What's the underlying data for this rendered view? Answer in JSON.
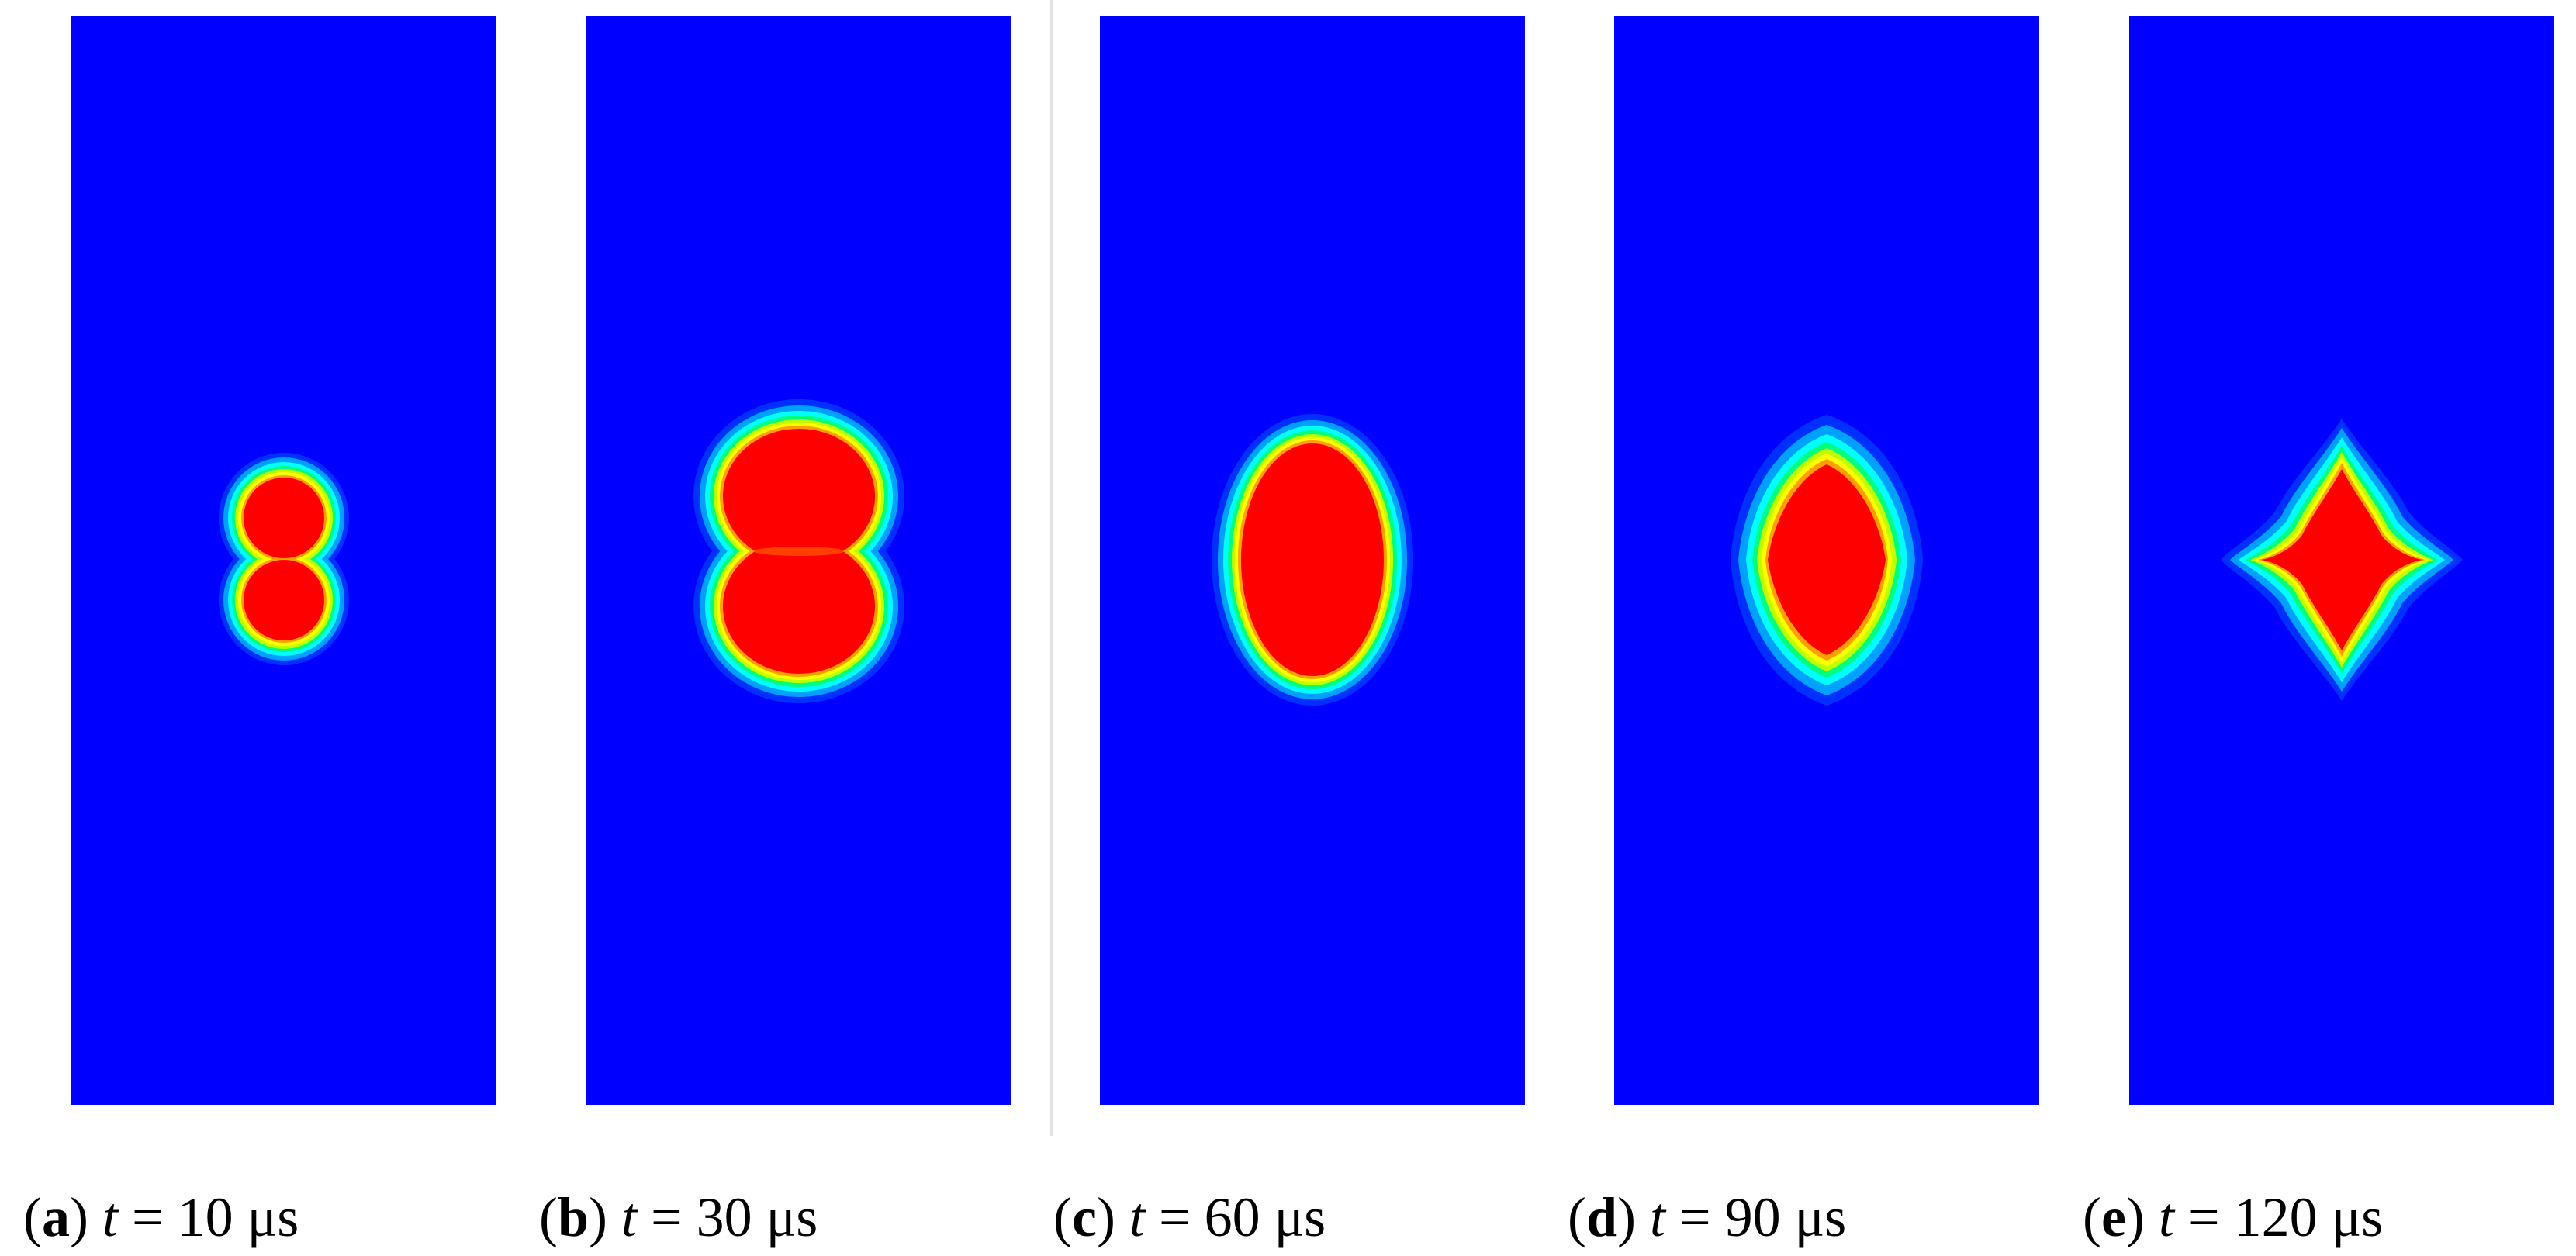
{
  "panels": [
    {
      "letter": "a",
      "var": "t",
      "eq": " = ",
      "value": "10",
      "unit": "μs",
      "shape": "two-lobes-separate"
    },
    {
      "letter": "b",
      "var": "t",
      "eq": " = ",
      "value": "30",
      "unit": "μs",
      "shape": "two-lobes-merged"
    },
    {
      "letter": "c",
      "var": "t",
      "eq": " = ",
      "value": "60",
      "unit": "μs",
      "shape": "oval"
    },
    {
      "letter": "d",
      "var": "t",
      "eq": " = ",
      "value": "90",
      "unit": "μs",
      "shape": "rounded-diamond"
    },
    {
      "letter": "e",
      "var": "t",
      "eq": " = ",
      "value": "120",
      "unit": "μs",
      "shape": "four-point-star"
    }
  ],
  "colors": {
    "background_field": "#0000ff",
    "core": "#ff0000",
    "gradient": [
      "#0000ff",
      "#00a0ff",
      "#00ffff",
      "#00ff80",
      "#c0ff00",
      "#ffff00",
      "#ffa000",
      "#ff0000"
    ]
  }
}
